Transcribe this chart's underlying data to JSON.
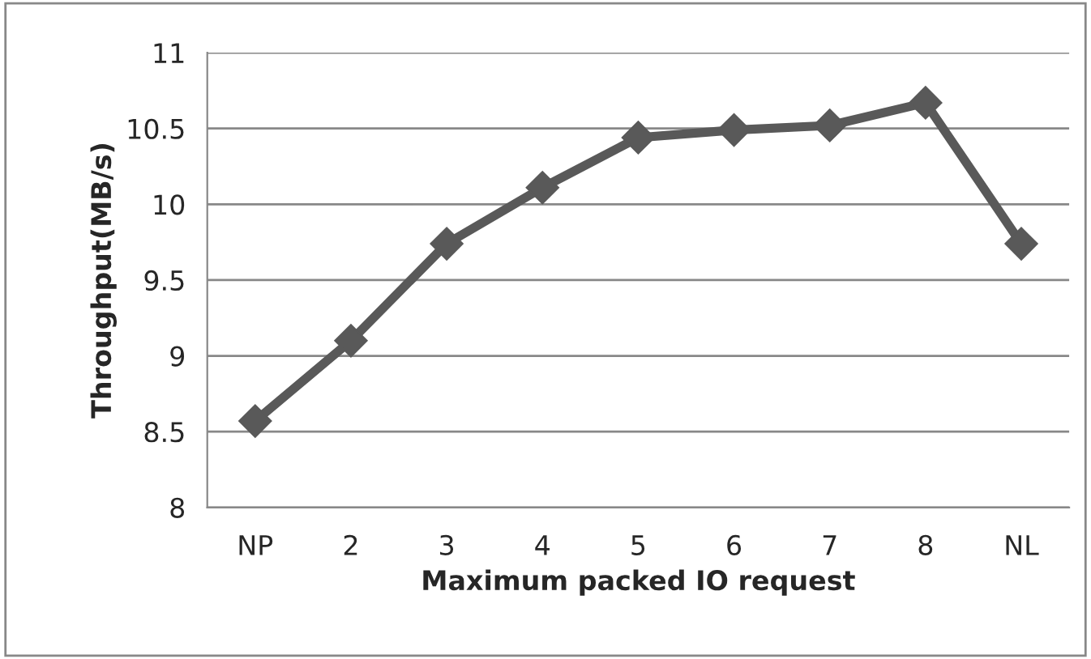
{
  "chart_data": {
    "type": "line",
    "xlabel": "Maximum packed IO request",
    "ylabel": "Throughput(MB/s)",
    "categories": [
      "NP",
      "2",
      "3",
      "4",
      "5",
      "6",
      "7",
      "8",
      "NL"
    ],
    "series": [
      {
        "color": "#595959",
        "values": [
          8.57,
          9.1,
          9.74,
          10.11,
          10.44,
          10.49,
          10.52,
          10.67,
          9.74
        ]
      }
    ],
    "ylim": [
      8,
      11
    ],
    "yticks": [
      8,
      8.5,
      9,
      9.5,
      10,
      10.5,
      11
    ],
    "grid": "y",
    "marker": "diamond",
    "line_style": "solid",
    "legend": false
  }
}
